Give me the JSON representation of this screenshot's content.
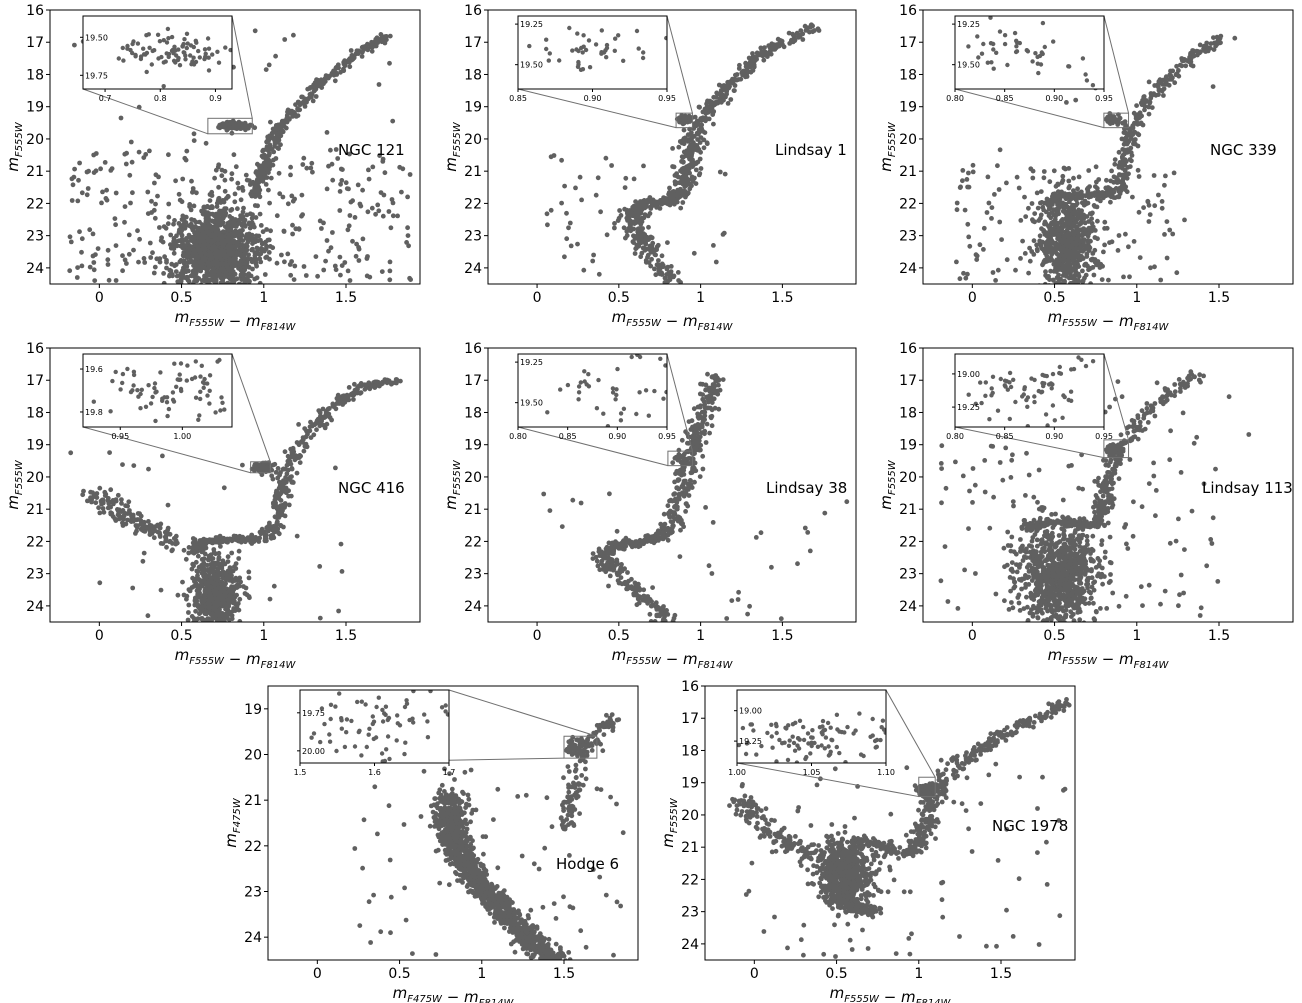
{
  "page_title": "",
  "colors": {
    "points": "#606060",
    "frame": "#000000",
    "connector": "#707070",
    "background": "#ffffff"
  },
  "chart_data": [
    {
      "type": "scatter",
      "panel_label": "NGC 121",
      "xlabel": "m_{F555W} − m_{F814W}",
      "ylabel": "m_{F555W}",
      "xlim": [
        -0.3,
        1.95
      ],
      "ylim": [
        24.5,
        16
      ],
      "y_inverted": true,
      "xticks": [
        0.0,
        0.5,
        1.0,
        1.5
      ],
      "yticks": [
        16,
        17,
        18,
        19,
        20,
        21,
        22,
        23,
        24
      ],
      "seed": 121,
      "components": [
        {
          "kind": "blob",
          "n": 1200,
          "cx": 0.72,
          "cy": 23.5,
          "sx": 0.13,
          "sy": 0.75
        },
        {
          "kind": "path",
          "n": 320,
          "scatter": 0.025,
          "pts": [
            [
              0.95,
              21.8
            ],
            [
              1.0,
              20.8
            ],
            [
              1.1,
              19.6
            ],
            [
              1.3,
              18.5
            ],
            [
              1.55,
              17.4
            ],
            [
              1.75,
              16.8
            ]
          ]
        },
        {
          "kind": "clump",
          "n": 90,
          "cx": 0.82,
          "cy": 19.6,
          "sx": 0.05,
          "sy": 0.06
        },
        {
          "kind": "spread",
          "n": 320,
          "xr": [
            -0.2,
            1.9
          ],
          "yr": [
            20.3,
            24.4
          ]
        },
        {
          "kind": "spread",
          "n": 30,
          "xr": [
            -0.2,
            1.9
          ],
          "yr": [
            16.5,
            20.3
          ]
        }
      ],
      "inset": {
        "xlim": [
          0.66,
          0.93
        ],
        "ylim": [
          19.84,
          19.36
        ],
        "xticks": [
          "0.7",
          "0.8",
          "0.9"
        ],
        "yticks": [
          "19.50",
          "19.75"
        ],
        "box": [
          0.66,
          0.93,
          19.36,
          19.84
        ]
      }
    },
    {
      "type": "scatter",
      "panel_label": "Lindsay 1",
      "xlabel": "m_{F555W} − m_{F814W}",
      "ylabel": "m_{F555W}",
      "xlim": [
        -0.3,
        1.95
      ],
      "ylim": [
        24.5,
        16
      ],
      "y_inverted": true,
      "xticks": [
        0.0,
        0.5,
        1.0,
        1.5
      ],
      "yticks": [
        16,
        17,
        18,
        19,
        20,
        21,
        22,
        23,
        24
      ],
      "seed": 1,
      "components": [
        {
          "kind": "path",
          "n": 700,
          "scatter": 0.035,
          "pts": [
            [
              0.82,
              24.5
            ],
            [
              0.67,
              23.4
            ],
            [
              0.58,
              22.5
            ],
            [
              0.62,
              22.05
            ],
            [
              0.8,
              21.95
            ],
            [
              0.88,
              21.7
            ],
            [
              0.92,
              21.0
            ],
            [
              0.95,
              20.2
            ],
            [
              1.02,
              19.2
            ],
            [
              1.2,
              18.2
            ],
            [
              1.4,
              17.3
            ],
            [
              1.7,
              16.5
            ]
          ]
        },
        {
          "kind": "clump",
          "n": 40,
          "cx": 0.9,
          "cy": 19.4,
          "sx": 0.02,
          "sy": 0.05
        },
        {
          "kind": "spread",
          "n": 55,
          "xr": [
            0.0,
            1.2
          ],
          "yr": [
            20.5,
            24.4
          ]
        }
      ],
      "inset": {
        "xlim": [
          0.85,
          0.95
        ],
        "ylim": [
          19.65,
          19.2
        ],
        "xticks": [
          "0.85",
          "0.90",
          "0.95"
        ],
        "yticks": [
          "19.25",
          "19.50"
        ],
        "box": [
          0.85,
          0.95,
          19.2,
          19.65
        ]
      }
    },
    {
      "type": "scatter",
      "panel_label": "NGC 339",
      "xlabel": "m_{F555W} − m_{F814W}",
      "ylabel": "m_{F555W}",
      "xlim": [
        -0.3,
        1.95
      ],
      "ylim": [
        24.5,
        16
      ],
      "y_inverted": true,
      "xticks": [
        0.0,
        0.5,
        1.0,
        1.5
      ],
      "yticks": [
        16,
        17,
        18,
        19,
        20,
        21,
        22,
        23,
        24
      ],
      "seed": 339,
      "components": [
        {
          "kind": "blob",
          "n": 650,
          "cx": 0.58,
          "cy": 23.2,
          "sx": 0.09,
          "sy": 0.8
        },
        {
          "kind": "path",
          "n": 350,
          "scatter": 0.03,
          "pts": [
            [
              0.45,
              22.1
            ],
            [
              0.55,
              21.75
            ],
            [
              0.75,
              21.75
            ],
            [
              0.87,
              21.7
            ],
            [
              0.92,
              21.0
            ],
            [
              0.95,
              20.1
            ],
            [
              1.0,
              19.3
            ],
            [
              1.15,
              18.3
            ],
            [
              1.35,
              17.4
            ],
            [
              1.55,
              16.8
            ]
          ]
        },
        {
          "kind": "clump",
          "n": 40,
          "cx": 0.87,
          "cy": 19.4,
          "sx": 0.025,
          "sy": 0.07
        },
        {
          "kind": "spread",
          "n": 150,
          "xr": [
            -0.1,
            1.3
          ],
          "yr": [
            20.8,
            24.4
          ]
        },
        {
          "kind": "spread",
          "n": 12,
          "xr": [
            -0.1,
            1.6
          ],
          "yr": [
            16.5,
            20.5
          ]
        }
      ],
      "inset": {
        "xlim": [
          0.8,
          0.95
        ],
        "ylim": [
          19.65,
          19.2
        ],
        "xticks": [
          "0.80",
          "0.85",
          "0.90",
          "0.95"
        ],
        "yticks": [
          "19.25",
          "19.50"
        ],
        "box": [
          0.8,
          0.95,
          19.2,
          19.65
        ]
      }
    },
    {
      "type": "scatter",
      "panel_label": "NGC 416",
      "xlabel": "m_{F555W} − m_{F814W}",
      "ylabel": "m_{F555W}",
      "xlim": [
        -0.3,
        1.95
      ],
      "ylim": [
        24.5,
        16
      ],
      "y_inverted": true,
      "xticks": [
        0.0,
        0.5,
        1.0,
        1.5
      ],
      "yticks": [
        16,
        17,
        18,
        19,
        20,
        21,
        22,
        23,
        24
      ],
      "seed": 416,
      "components": [
        {
          "kind": "blob",
          "n": 600,
          "cx": 0.7,
          "cy": 23.6,
          "sx": 0.07,
          "sy": 0.6
        },
        {
          "kind": "path",
          "n": 450,
          "scatter": 0.03,
          "pts": [
            [
              0.58,
              22.3
            ],
            [
              0.62,
              22.0
            ],
            [
              0.8,
              21.95
            ],
            [
              1.0,
              21.9
            ],
            [
              1.08,
              21.5
            ],
            [
              1.1,
              20.6
            ],
            [
              1.13,
              19.8
            ],
            [
              1.25,
              18.8
            ],
            [
              1.4,
              17.9
            ],
            [
              1.6,
              17.2
            ],
            [
              1.8,
              17.0
            ]
          ]
        },
        {
          "kind": "clump",
          "n": 80,
          "cx": 0.99,
          "cy": 19.7,
          "sx": 0.03,
          "sy": 0.08
        },
        {
          "kind": "path",
          "n": 160,
          "scatter": 0.05,
          "pts": [
            [
              -0.05,
              20.5
            ],
            [
              0.1,
              21.0
            ],
            [
              0.3,
              21.6
            ],
            [
              0.5,
              22.2
            ]
          ]
        },
        {
          "kind": "spread",
          "n": 30,
          "xr": [
            -0.25,
            1.5
          ],
          "yr": [
            19.0,
            24.4
          ]
        }
      ],
      "inset": {
        "xlim": [
          0.92,
          1.04
        ],
        "ylim": [
          19.87,
          19.53
        ],
        "xticks": [
          "0.95",
          "1.00"
        ],
        "yticks": [
          "19.6",
          "19.8"
        ],
        "box": [
          0.92,
          1.04,
          19.53,
          19.87
        ]
      }
    },
    {
      "type": "scatter",
      "panel_label": "Lindsay 38",
      "xlabel": "m_{F555W} − m_{F814W}",
      "ylabel": "m_{F555W}",
      "xlim": [
        -0.3,
        1.95
      ],
      "ylim": [
        24.5,
        16
      ],
      "y_inverted": true,
      "xticks": [
        0.0,
        0.5,
        1.0,
        1.5
      ],
      "yticks": [
        16,
        17,
        18,
        19,
        20,
        21,
        22,
        23,
        24
      ],
      "seed": 38,
      "components": [
        {
          "kind": "path",
          "n": 600,
          "scatter": 0.035,
          "pts": [
            [
              0.8,
              24.5
            ],
            [
              0.6,
              23.5
            ],
            [
              0.45,
              22.8
            ],
            [
              0.4,
              22.4
            ],
            [
              0.5,
              22.1
            ],
            [
              0.7,
              21.95
            ],
            [
              0.8,
              21.7
            ],
            [
              0.85,
              21.0
            ],
            [
              0.9,
              20.0
            ],
            [
              0.95,
              19.2
            ],
            [
              1.0,
              18.5
            ],
            [
              1.05,
              17.5
            ],
            [
              1.1,
              16.8
            ]
          ]
        },
        {
          "kind": "clump",
          "n": 14,
          "cx": 0.88,
          "cy": 19.4,
          "sx": 0.02,
          "sy": 0.05
        },
        {
          "kind": "spread",
          "n": 30,
          "xr": [
            0.0,
            1.9
          ],
          "yr": [
            20.5,
            24.4
          ]
        }
      ],
      "inset": {
        "xlim": [
          0.8,
          0.95
        ],
        "ylim": [
          19.65,
          19.2
        ],
        "xticks": [
          "0.80",
          "0.85",
          "0.90",
          "0.95"
        ],
        "yticks": [
          "19.25",
          "19.50"
        ],
        "box": [
          0.8,
          0.95,
          19.2,
          19.65
        ]
      }
    },
    {
      "type": "scatter",
      "panel_label": "Lindsay 113",
      "xlabel": "m_{F555W} − m_{F814W}",
      "ylabel": "m_{F555W}",
      "xlim": [
        -0.3,
        1.95
      ],
      "ylim": [
        24.5,
        16
      ],
      "y_inverted": true,
      "xticks": [
        0.0,
        0.5,
        1.0,
        1.5
      ],
      "yticks": [
        16,
        17,
        18,
        19,
        20,
        21,
        22,
        23,
        24
      ],
      "seed": 113,
      "components": [
        {
          "kind": "blob",
          "n": 900,
          "cx": 0.52,
          "cy": 23.0,
          "sx": 0.12,
          "sy": 0.8
        },
        {
          "kind": "path",
          "n": 360,
          "scatter": 0.03,
          "pts": [
            [
              0.3,
              21.6
            ],
            [
              0.4,
              21.45
            ],
            [
              0.6,
              21.4
            ],
            [
              0.72,
              21.5
            ],
            [
              0.78,
              21.4
            ],
            [
              0.8,
              20.8
            ],
            [
              0.82,
              20.0
            ],
            [
              0.88,
              19.3
            ],
            [
              1.0,
              18.4
            ],
            [
              1.15,
              17.6
            ],
            [
              1.35,
              16.8
            ]
          ]
        },
        {
          "kind": "clump",
          "n": 40,
          "cx": 0.86,
          "cy": 19.1,
          "sx": 0.025,
          "sy": 0.06
        },
        {
          "kind": "spread",
          "n": 120,
          "xr": [
            -0.2,
            1.5
          ],
          "yr": [
            19.0,
            24.4
          ]
        },
        {
          "kind": "spread",
          "n": 15,
          "xr": [
            0.8,
            1.8
          ],
          "yr": [
            16.2,
            19.5
          ]
        }
      ],
      "inset": {
        "xlim": [
          0.8,
          0.95
        ],
        "ylim": [
          19.4,
          18.85
        ],
        "xticks": [
          "0.80",
          "0.85",
          "0.90",
          "0.95"
        ],
        "yticks": [
          "19.00",
          "19.25"
        ],
        "box": [
          0.8,
          0.95,
          18.85,
          19.4
        ]
      }
    },
    {
      "type": "scatter",
      "panel_label": "Hodge 6",
      "xlabel": "m_{F475W} − m_{F814W}",
      "ylabel": "m_{F475W}",
      "xlim": [
        -0.3,
        1.95
      ],
      "ylim": [
        24.5,
        18.5
      ],
      "y_inverted": true,
      "xticks": [
        0.0,
        0.5,
        1.0,
        1.5
      ],
      "yticks": [
        19,
        20,
        21,
        22,
        23,
        24
      ],
      "seed": 6,
      "components": [
        {
          "kind": "path",
          "n": 1100,
          "scatter": 0.045,
          "pts": [
            [
              0.8,
              20.9
            ],
            [
              0.82,
              21.8
            ],
            [
              0.9,
              22.4
            ],
            [
              1.0,
              22.9
            ],
            [
              1.15,
              23.5
            ],
            [
              1.3,
              24.1
            ],
            [
              1.45,
              24.5
            ]
          ]
        },
        {
          "kind": "blob",
          "n": 200,
          "cx": 0.83,
          "cy": 21.6,
          "sx": 0.05,
          "sy": 0.35
        },
        {
          "kind": "path",
          "n": 130,
          "scatter": 0.03,
          "pts": [
            [
              1.5,
              21.7
            ],
            [
              1.55,
              21.0
            ],
            [
              1.6,
              20.2
            ],
            [
              1.7,
              19.5
            ],
            [
              1.8,
              19.2
            ]
          ]
        },
        {
          "kind": "clump",
          "n": 55,
          "cx": 1.6,
          "cy": 19.8,
          "sx": 0.05,
          "sy": 0.09
        },
        {
          "kind": "spread",
          "n": 70,
          "xr": [
            0.2,
            1.9
          ],
          "yr": [
            20.3,
            24.4
          ]
        }
      ],
      "inset": {
        "xlim": [
          1.5,
          1.7
        ],
        "ylim": [
          20.08,
          19.6
        ],
        "xticks": [
          "1.5",
          "1.6",
          "1.7"
        ],
        "yticks": [
          "19.75",
          "20.00"
        ],
        "box": [
          1.5,
          1.7,
          19.6,
          20.08
        ]
      }
    },
    {
      "type": "scatter",
      "panel_label": "NGC 1978",
      "xlabel": "m_{F555W} − m_{F814W}",
      "ylabel": "m_{F555W}",
      "xlim": [
        -0.3,
        1.95
      ],
      "ylim": [
        24.5,
        16
      ],
      "y_inverted": true,
      "xticks": [
        0.0,
        0.5,
        1.0,
        1.5
      ],
      "yticks": [
        16,
        17,
        18,
        19,
        20,
        21,
        22,
        23,
        24
      ],
      "seed": 1978,
      "components": [
        {
          "kind": "blob",
          "n": 650,
          "cx": 0.55,
          "cy": 21.8,
          "sx": 0.08,
          "sy": 0.5
        },
        {
          "kind": "path",
          "n": 200,
          "scatter": 0.04,
          "pts": [
            [
              0.5,
              22.5
            ],
            [
              0.6,
              22.8
            ],
            [
              0.7,
              23.0
            ]
          ]
        },
        {
          "kind": "path",
          "n": 420,
          "scatter": 0.035,
          "pts": [
            [
              0.6,
              20.8
            ],
            [
              0.8,
              21.0
            ],
            [
              0.95,
              21.2
            ],
            [
              1.0,
              20.8
            ],
            [
              1.05,
              20.0
            ],
            [
              1.1,
              19.2
            ],
            [
              1.25,
              18.4
            ],
            [
              1.45,
              17.7
            ],
            [
              1.7,
              17.0
            ],
            [
              1.9,
              16.5
            ]
          ]
        },
        {
          "kind": "path",
          "n": 140,
          "scatter": 0.05,
          "pts": [
            [
              -0.1,
              19.5
            ],
            [
              0.05,
              20.3
            ],
            [
              0.2,
              20.9
            ],
            [
              0.35,
              21.3
            ]
          ]
        },
        {
          "kind": "clump",
          "n": 90,
          "cx": 1.05,
          "cy": 19.2,
          "sx": 0.03,
          "sy": 0.09
        },
        {
          "kind": "spread",
          "n": 90,
          "xr": [
            -0.1,
            1.9
          ],
          "yr": [
            18.0,
            24.4
          ]
        }
      ],
      "inset": {
        "xlim": [
          1.0,
          1.1
        ],
        "ylim": [
          19.43,
          18.83
        ],
        "xticks": [
          "1.00",
          "1.05",
          "1.10"
        ],
        "yticks": [
          "19.00",
          "19.25"
        ],
        "box": [
          1.0,
          1.1,
          18.83,
          19.43
        ]
      }
    }
  ]
}
